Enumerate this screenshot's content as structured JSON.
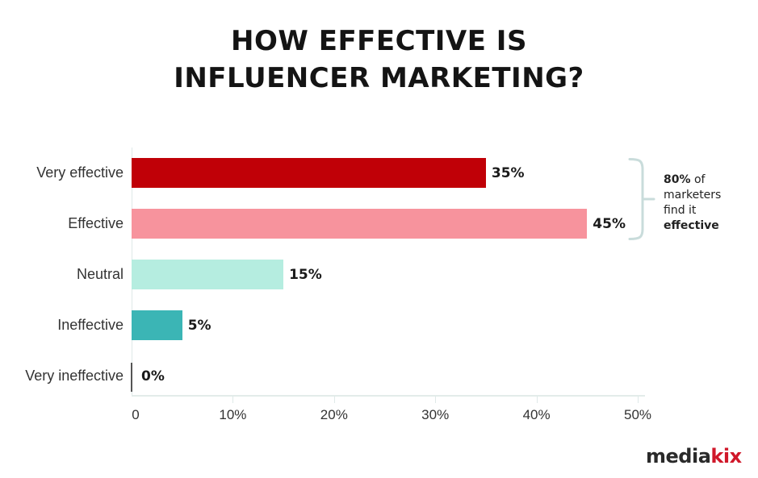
{
  "title": {
    "line1": "HOW EFFECTIVE IS",
    "line2": "INFLUENCER MARKETING?"
  },
  "chart_data": {
    "type": "bar",
    "orientation": "horizontal",
    "title": "HOW EFFECTIVE IS INFLUENCER MARKETING?",
    "xlabel": "",
    "ylabel": "",
    "xlim": [
      0,
      50
    ],
    "grid": false,
    "categories": [
      "Very effective",
      "Effective",
      "Neutral",
      "Ineffective",
      "Very ineffective"
    ],
    "values": [
      35,
      45,
      15,
      5,
      0
    ],
    "value_labels": [
      "35%",
      "45%",
      "15%",
      "5%",
      "0%"
    ],
    "colors": [
      "#c00007",
      "#f7939d",
      "#b5ede0",
      "#3bb5b5",
      "#555555"
    ],
    "x_ticks": [
      "0",
      "10%",
      "20%",
      "30%",
      "40%",
      "50%"
    ],
    "annotations": [
      {
        "target": [
          "Very effective",
          "Effective"
        ],
        "type": "brace",
        "text_bold_1": "80%",
        "text_1": " of",
        "text_2": "marketers",
        "text_3": "find it",
        "text_bold_4": "effective"
      }
    ]
  },
  "brand": {
    "logo_part1": "media",
    "logo_part2": "kix",
    "logo_color_dark": "#2a2a2a",
    "logo_color_accent": "#d0182a"
  }
}
